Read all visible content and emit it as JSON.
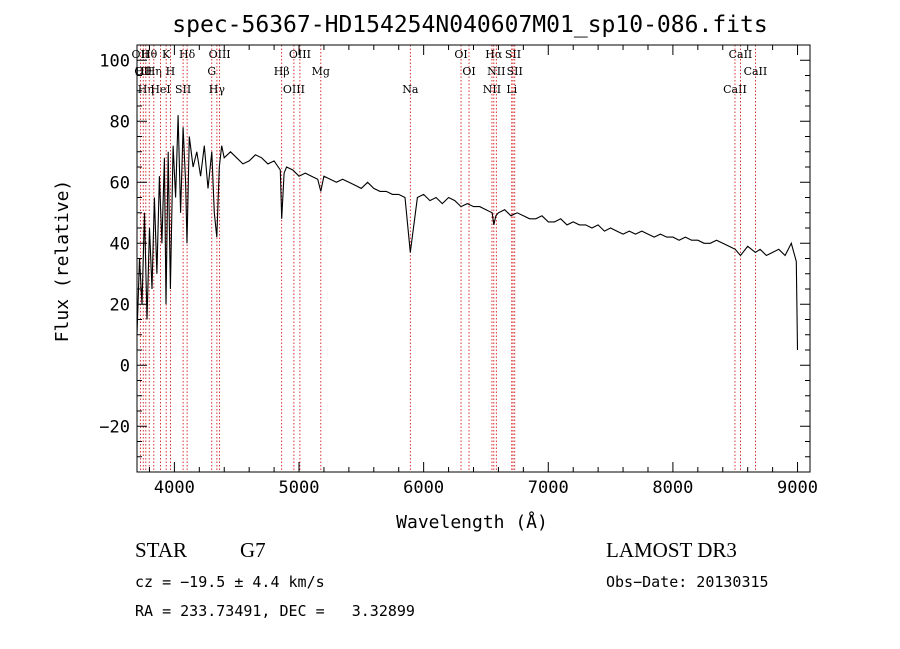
{
  "chart_data": {
    "type": "line",
    "title": "spec-56367-HD154254N040607M01_sp10-086.fits",
    "xlabel": "Wavelength (Å)",
    "ylabel": "Flux (relative)",
    "xlim": [
      3700,
      9100
    ],
    "ylim": [
      -35,
      105
    ],
    "xticks": [
      4000,
      5000,
      6000,
      7000,
      8000,
      9000
    ],
    "yticks": [
      -20,
      0,
      20,
      40,
      60,
      80,
      100
    ],
    "grid": false,
    "series_color": "#000000",
    "line_color": "#cc0000",
    "series": [
      {
        "x": [
          3700,
          3720,
          3740,
          3760,
          3780,
          3800,
          3820,
          3840,
          3860,
          3880,
          3900,
          3920,
          3933,
          3950,
          3968,
          3990,
          4010,
          4030,
          4050,
          4070,
          4090,
          4101,
          4120,
          4150,
          4180,
          4210,
          4240,
          4270,
          4300,
          4320,
          4340,
          4360,
          4380,
          4400,
          4450,
          4500,
          4550,
          4600,
          4650,
          4700,
          4750,
          4800,
          4850,
          4861,
          4880,
          4900,
          4950,
          5000,
          5050,
          5100,
          5150,
          5175,
          5200,
          5250,
          5300,
          5350,
          5400,
          5450,
          5500,
          5550,
          5600,
          5650,
          5700,
          5750,
          5800,
          5850,
          5893,
          5950,
          6000,
          6050,
          6100,
          6150,
          6200,
          6250,
          6300,
          6350,
          6400,
          6450,
          6500,
          6550,
          6563,
          6580,
          6600,
          6650,
          6700,
          6750,
          6800,
          6850,
          6900,
          6950,
          7000,
          7050,
          7100,
          7150,
          7200,
          7250,
          7300,
          7350,
          7400,
          7450,
          7500,
          7550,
          7600,
          7650,
          7700,
          7750,
          7800,
          7850,
          7900,
          7950,
          8000,
          8050,
          8100,
          8150,
          8200,
          8250,
          8300,
          8350,
          8400,
          8450,
          8500,
          8542,
          8600,
          8662,
          8700,
          8750,
          8800,
          8850,
          8900,
          8950,
          8990,
          9000
        ],
        "y": [
          10,
          35,
          20,
          50,
          15,
          45,
          25,
          55,
          30,
          62,
          40,
          68,
          20,
          70,
          25,
          72,
          55,
          82,
          50,
          78,
          60,
          40,
          75,
          65,
          70,
          62,
          72,
          58,
          70,
          50,
          42,
          65,
          72,
          68,
          70,
          68,
          66,
          67,
          69,
          68,
          66,
          67,
          64,
          48,
          63,
          65,
          64,
          62,
          63,
          62,
          61,
          57,
          62,
          61,
          60,
          61,
          60,
          59,
          58,
          60,
          58,
          57,
          57,
          56,
          56,
          55,
          37,
          55,
          56,
          54,
          55,
          53,
          55,
          54,
          52,
          53,
          52,
          52,
          51,
          50,
          46,
          49,
          50,
          51,
          49,
          50,
          49,
          48,
          48,
          49,
          47,
          47,
          48,
          46,
          47,
          46,
          46,
          45,
          46,
          44,
          45,
          44,
          43,
          44,
          43,
          44,
          43,
          42,
          43,
          42,
          42,
          41,
          42,
          41,
          41,
          40,
          40,
          41,
          40,
          39,
          38,
          36,
          39,
          37,
          38,
          36,
          37,
          38,
          36,
          40,
          34,
          5
        ]
      }
    ],
    "lines": [
      {
        "x": 3727,
        "labels": [
          "OII"
        ]
      },
      {
        "x": 3750,
        "labels": [
          "Hθ",
          "OII"
        ]
      },
      {
        "x": 3771,
        "labels": [
          "Hη"
        ]
      },
      {
        "x": 3798,
        "labels": [
          "Hθ"
        ]
      },
      {
        "x": 3835,
        "labels": [
          "Hη"
        ]
      },
      {
        "x": 3889,
        "labels": [
          "HeI"
        ]
      },
      {
        "x": 3934,
        "labels": [
          "K"
        ]
      },
      {
        "x": 3968,
        "labels": [
          "H"
        ]
      },
      {
        "x": 4070,
        "labels": [
          "SII"
        ]
      },
      {
        "x": 4102,
        "labels": [
          "Hδ"
        ]
      },
      {
        "x": 4300,
        "labels": [
          "G"
        ]
      },
      {
        "x": 4341,
        "labels": [
          "Hγ"
        ]
      },
      {
        "x": 4363,
        "labels": [
          "OIII"
        ]
      },
      {
        "x": 4861,
        "labels": [
          "Hβ"
        ]
      },
      {
        "x": 4959,
        "labels": [
          "OIII"
        ]
      },
      {
        "x": 5007,
        "labels": [
          "OIII"
        ]
      },
      {
        "x": 5175,
        "labels": [
          "Mg"
        ]
      },
      {
        "x": 5893,
        "labels": [
          "Na"
        ]
      },
      {
        "x": 6300,
        "labels": [
          "OI"
        ]
      },
      {
        "x": 6364,
        "labels": [
          "OI"
        ]
      },
      {
        "x": 6548,
        "labels": [
          "NII"
        ]
      },
      {
        "x": 6563,
        "labels": [
          "Hα"
        ]
      },
      {
        "x": 6583,
        "labels": [
          "NII"
        ]
      },
      {
        "x": 6707,
        "labels": [
          "Li"
        ]
      },
      {
        "x": 6717,
        "labels": [
          "SII"
        ]
      },
      {
        "x": 6731,
        "labels": [
          "SII"
        ]
      },
      {
        "x": 8498,
        "labels": [
          "CaII"
        ]
      },
      {
        "x": 8542,
        "labels": [
          "CaII"
        ]
      },
      {
        "x": 8662,
        "labels": [
          "CaII"
        ]
      }
    ]
  },
  "info": {
    "class": "STAR",
    "subclass": "G7",
    "survey": "LAMOST DR3",
    "cz": "cz = −19.5 ± 4.4 km/s",
    "obsdate": "Obs−Date: 20130315",
    "radec": "RA = 233.73491, DEC =   3.32899"
  }
}
